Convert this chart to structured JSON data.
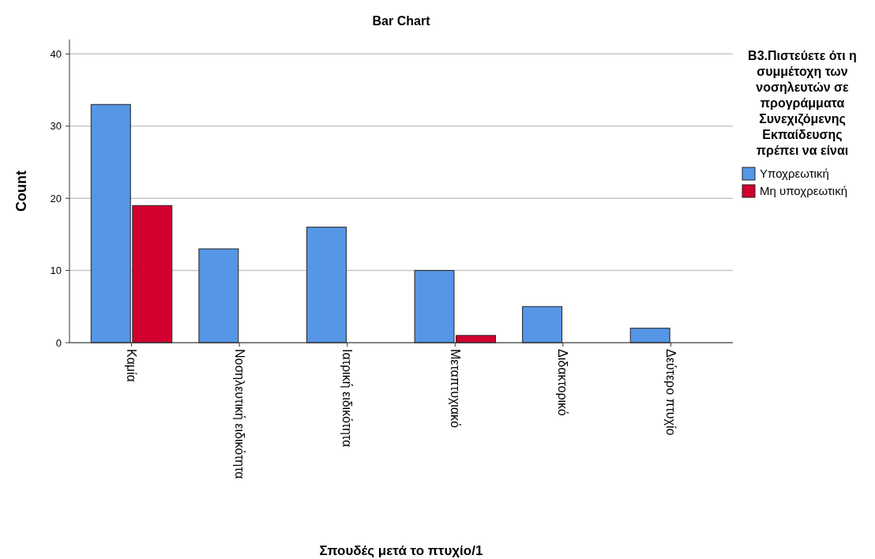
{
  "chart_data": {
    "type": "bar",
    "title": "Bar Chart",
    "xlabel": "Σπουδές μετά το πτυχίο/1",
    "ylabel": "Count",
    "legend_title": "B3.Πιστεύετε ότι η συμμέτοχη των νοσηλευτών σε προγράμματα Συνεχιζόμενης Εκπαίδευσης πρέπει να είναι",
    "categories": [
      "Καμία",
      "Νοσηλευτική ειδικότητα",
      "Ιατρική ειδικότητα",
      "Μεταπτυχιακό",
      "Διδακτορικό",
      "Δεύτερο πτυχίο"
    ],
    "series": [
      {
        "name": "Υποχρεωτική",
        "color": "#5596e6",
        "values": [
          33,
          13,
          16,
          10,
          5,
          2
        ]
      },
      {
        "name": "Μη υποχρεωτική",
        "color": "#d1002f",
        "values": [
          19,
          null,
          null,
          1,
          null,
          null
        ]
      }
    ],
    "ylim": [
      0,
      42
    ],
    "yticks": [
      0,
      10,
      20,
      30,
      40
    ],
    "grid": "y",
    "legend": "right"
  }
}
